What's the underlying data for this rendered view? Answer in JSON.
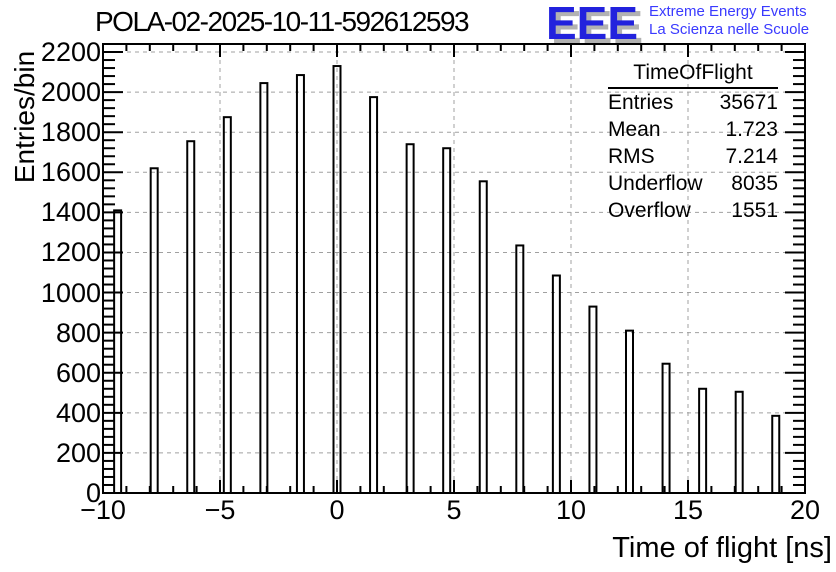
{
  "page": {
    "background": "#ffffff"
  },
  "header": {
    "title": "POLA-02-2025-10-11-592612593",
    "logo": {
      "acronym": "EEE",
      "line1": "Extreme Energy Events",
      "line2": "La Scienza nelle Scuole",
      "blue": "#2222dd",
      "light_blue": "#3a3aff",
      "shadow_gray": "#b2b2b2"
    }
  },
  "stats_box": {
    "title": "TimeOfFlight",
    "rows": [
      {
        "label": "Entries",
        "value": "35671"
      },
      {
        "label": "Mean",
        "value": "1.723"
      },
      {
        "label": "RMS",
        "value": "7.214"
      },
      {
        "label": "Underflow",
        "value": "8035"
      },
      {
        "label": "Overflow",
        "value": "1551"
      }
    ]
  },
  "chart_data": {
    "type": "bar",
    "title": "POLA-02-2025-10-11-592612593",
    "xlabel": "Time of flight [ns]",
    "ylabel": "Entries/bin",
    "xlim": [
      -10,
      20
    ],
    "ylim": [
      0,
      2240
    ],
    "grid": true,
    "grid_color": "#a0a0a0",
    "bar_color": "#000000",
    "bin_spacing_ns": 1.5625,
    "bar_width_ns": 0.3,
    "x": [
      -9.375,
      -7.8125,
      -6.25,
      -4.6875,
      -3.125,
      -1.5625,
      0,
      1.5625,
      3.125,
      4.6875,
      6.25,
      7.8125,
      9.375,
      10.9375,
      12.5,
      14.0625,
      15.625,
      17.1875,
      18.75
    ],
    "values": [
      1410,
      1620,
      1755,
      1875,
      2045,
      2085,
      2130,
      1975,
      1740,
      1720,
      1555,
      1235,
      1085,
      930,
      810,
      645,
      520,
      505,
      385
    ],
    "x_gridlines": [
      -5,
      0,
      5,
      10,
      15
    ],
    "y_gridlines": [
      200,
      400,
      600,
      800,
      1000,
      1200,
      1400,
      1600,
      1800,
      2000,
      2200
    ],
    "x_major_ticks": [
      -10,
      -5,
      0,
      5,
      10,
      15,
      20
    ],
    "x_tick_labels": [
      "−10",
      "−5",
      "0",
      "5",
      "10",
      "15",
      "20"
    ],
    "x_minor_step": 1,
    "y_major_ticks": [
      0,
      200,
      400,
      600,
      800,
      1000,
      1200,
      1400,
      1600,
      1800,
      2000,
      2200
    ],
    "y_tick_labels": [
      "0",
      "200",
      "400",
      "600",
      "800",
      "1000",
      "1200",
      "1400",
      "1600",
      "1800",
      "2000",
      "2200"
    ],
    "y_minor_step": 40,
    "legend_position": "none"
  }
}
